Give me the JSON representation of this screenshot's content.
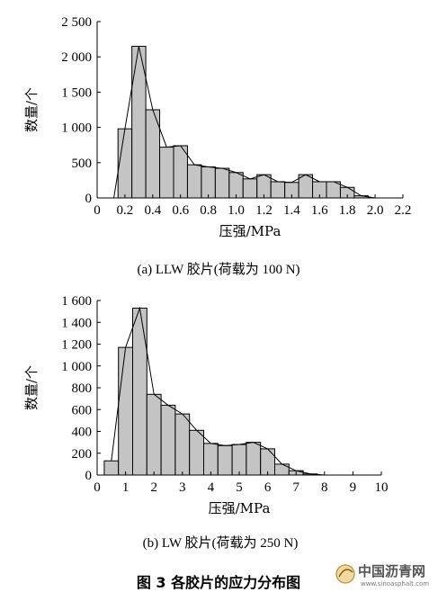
{
  "figure_caption": "图 3   各胶片的应力分布图",
  "watermark": {
    "name": "中国沥青网",
    "url": "www.sinoasphalt.com"
  },
  "chart_data": [
    {
      "type": "bar",
      "caption": "(a) LLW 胶片(荷载为 100 N)",
      "xlabel": "压强/MPa",
      "ylabel": "数量/个",
      "xlim": [
        0,
        2.2
      ],
      "ylim": [
        0,
        2500
      ],
      "xticks": [
        "0",
        "0.2",
        "0.4",
        "0.6",
        "0.8",
        "1.0",
        "1.2",
        "1.4",
        "1.6",
        "1.8",
        "2.0",
        "2.2"
      ],
      "yticks": [
        "0",
        "500",
        "1 000",
        "1 500",
        "2 000",
        "2 500"
      ],
      "bin_width": 0.1,
      "x": [
        0.2,
        0.3,
        0.4,
        0.5,
        0.6,
        0.7,
        0.8,
        0.9,
        1.0,
        1.1,
        1.2,
        1.3,
        1.4,
        1.5,
        1.6,
        1.7,
        1.8,
        1.9
      ],
      "values": [
        980,
        2150,
        1250,
        720,
        740,
        470,
        440,
        420,
        360,
        270,
        330,
        230,
        220,
        330,
        230,
        230,
        150,
        30
      ],
      "line_x": [
        0.12,
        0.2,
        0.3,
        0.4,
        0.5,
        0.6,
        0.7,
        0.8,
        0.9,
        1.0,
        1.1,
        1.2,
        1.3,
        1.4,
        1.5,
        1.6,
        1.7,
        1.8,
        1.9,
        2.0
      ],
      "line_y": [
        0,
        980,
        2150,
        1250,
        720,
        740,
        470,
        440,
        420,
        360,
        270,
        330,
        230,
        220,
        330,
        230,
        230,
        150,
        30,
        0
      ]
    },
    {
      "type": "bar",
      "caption": "(b) LW 胶片(荷载为 250 N)",
      "xlabel": "压强/MPa",
      "ylabel": "数量/个",
      "xlim": [
        0,
        10
      ],
      "ylim": [
        0,
        1600
      ],
      "xticks": [
        "0",
        "1",
        "2",
        "3",
        "4",
        "5",
        "6",
        "7",
        "8",
        "9",
        "10"
      ],
      "yticks": [
        "0",
        "200",
        "400",
        "600",
        "800",
        "1 000",
        "1 200",
        "1 400",
        "1 600"
      ],
      "bin_width": 0.5,
      "x": [
        0.5,
        1.0,
        1.5,
        2.0,
        2.5,
        3.0,
        3.5,
        4.0,
        4.5,
        5.0,
        5.5,
        6.0,
        6.5,
        7.0,
        7.5
      ],
      "values": [
        130,
        1170,
        1530,
        740,
        640,
        560,
        410,
        290,
        270,
        280,
        300,
        240,
        100,
        40,
        10
      ],
      "line_x": [
        0.5,
        1.0,
        1.5,
        2.0,
        2.5,
        3.0,
        3.5,
        4.0,
        4.5,
        5.0,
        5.5,
        6.0,
        6.5,
        7.0,
        7.5,
        8.0
      ],
      "line_y": [
        130,
        1170,
        1530,
        740,
        640,
        560,
        410,
        290,
        270,
        280,
        300,
        240,
        100,
        40,
        10,
        0
      ]
    }
  ]
}
